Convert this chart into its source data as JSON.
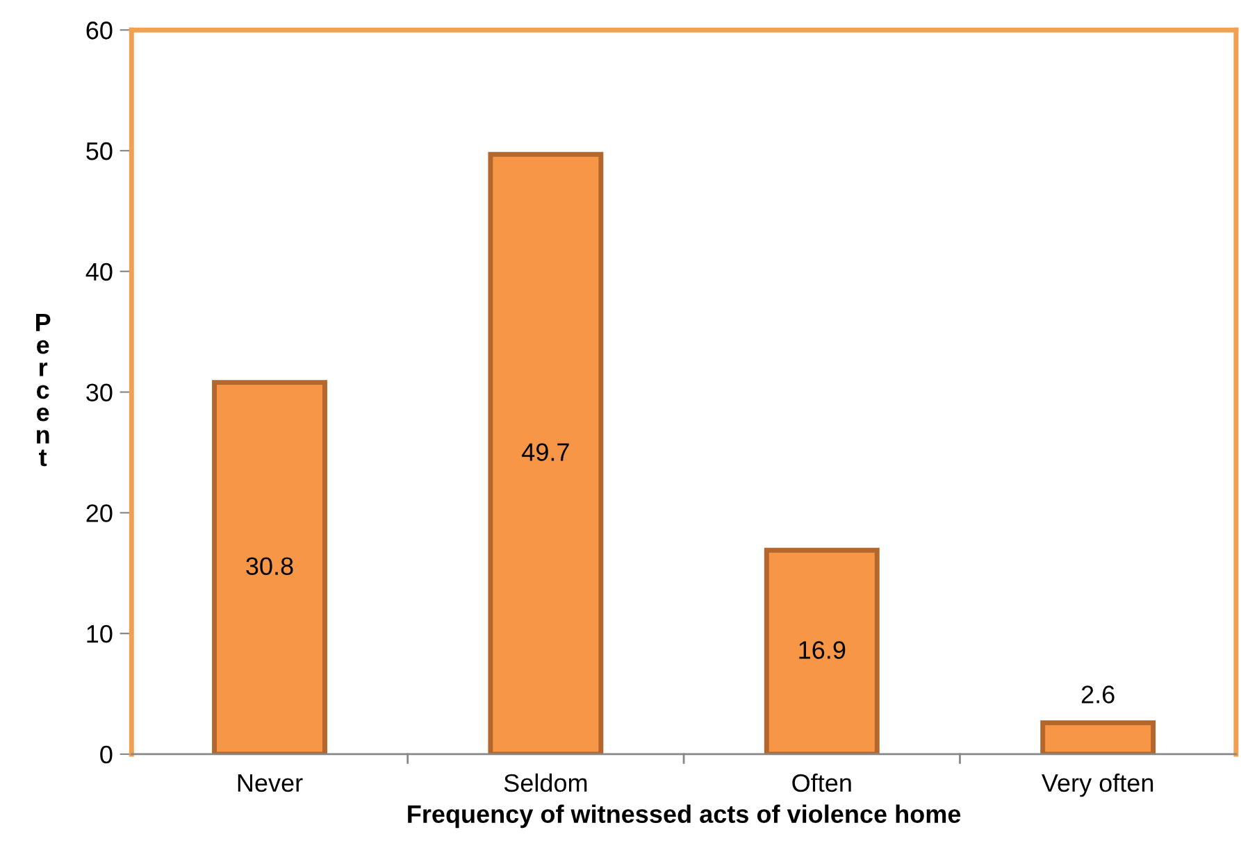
{
  "chart_data": {
    "type": "bar",
    "xlabel": "Frequency of witnessed acts of violence home",
    "ylabel": "Percent",
    "categories": [
      "Never",
      "Seldom",
      "Often",
      "Very often"
    ],
    "values": [
      30.8,
      49.7,
      16.9,
      2.6
    ],
    "color": "#f79646",
    "ylim": [
      0,
      60
    ],
    "yticks": [
      0,
      10,
      20,
      30,
      40,
      50,
      60
    ],
    "data_labels": true,
    "grid": false,
    "legend": false
  }
}
